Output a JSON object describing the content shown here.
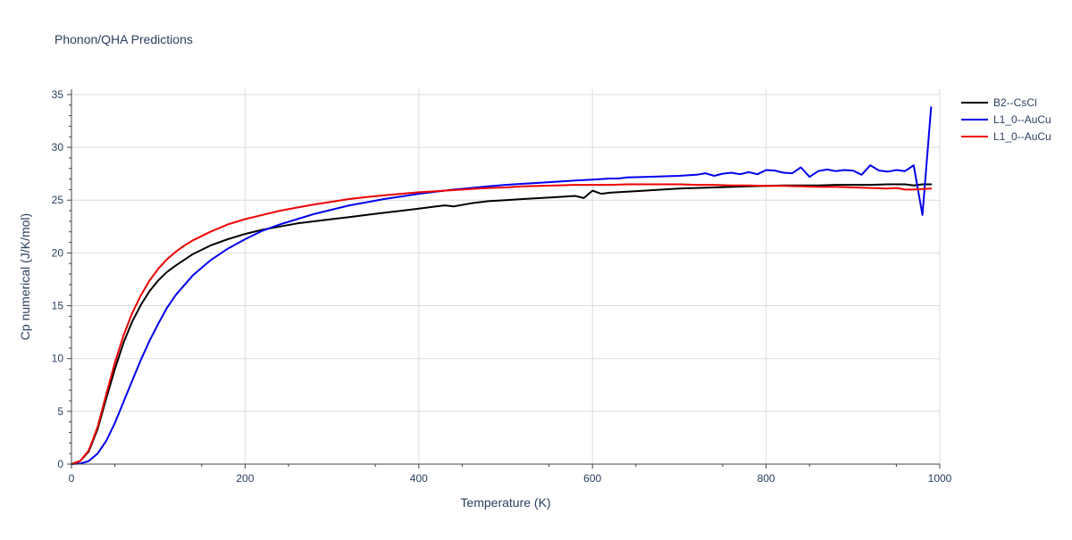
{
  "chart_data": {
    "type": "line",
    "title": "Phonon/QHA Predictions",
    "xlabel": "Temperature (K)",
    "ylabel": "Cp numerical (J/K/mol)",
    "xlim": [
      0,
      1000
    ],
    "ylim": [
      0,
      35.5
    ],
    "xticks": [
      0,
      200,
      400,
      600,
      800,
      1000
    ],
    "yticks": [
      0,
      5,
      10,
      15,
      20,
      25,
      30,
      35
    ],
    "grid": true,
    "legend_position": "right",
    "series": [
      {
        "name": "B2--CsCl",
        "color": "#000000",
        "x": [
          0,
          10,
          20,
          30,
          40,
          50,
          60,
          70,
          80,
          90,
          100,
          110,
          120,
          140,
          160,
          180,
          200,
          220,
          240,
          260,
          280,
          300,
          320,
          340,
          360,
          380,
          400,
          420,
          430,
          440,
          460,
          480,
          500,
          520,
          540,
          560,
          580,
          590,
          600,
          610,
          620,
          640,
          660,
          680,
          700,
          720,
          740,
          760,
          780,
          800,
          820,
          840,
          860,
          880,
          900,
          920,
          940,
          960,
          970,
          980,
          990
        ],
        "y": [
          0,
          0.3,
          1.2,
          3.3,
          6.2,
          9.0,
          11.5,
          13.5,
          15.1,
          16.4,
          17.4,
          18.2,
          18.8,
          19.9,
          20.7,
          21.3,
          21.8,
          22.2,
          22.5,
          22.8,
          23.0,
          23.2,
          23.4,
          23.6,
          23.8,
          24.0,
          24.2,
          24.4,
          24.5,
          24.4,
          24.7,
          24.9,
          25.0,
          25.1,
          25.2,
          25.3,
          25.4,
          25.2,
          25.9,
          25.6,
          25.7,
          25.8,
          25.9,
          26.0,
          26.1,
          26.15,
          26.2,
          26.25,
          26.3,
          26.35,
          26.4,
          26.4,
          26.4,
          26.45,
          26.45,
          26.45,
          26.5,
          26.5,
          26.4,
          26.5,
          26.5
        ]
      },
      {
        "name": "L1_0--AuCu",
        "color": "#0000ee",
        "x": [
          0,
          10,
          20,
          30,
          40,
          50,
          60,
          70,
          80,
          90,
          100,
          110,
          120,
          140,
          160,
          180,
          200,
          220,
          240,
          260,
          280,
          300,
          320,
          340,
          360,
          380,
          400,
          420,
          440,
          460,
          480,
          500,
          520,
          540,
          560,
          580,
          600,
          620,
          630,
          640,
          660,
          680,
          700,
          720,
          730,
          740,
          750,
          760,
          770,
          780,
          790,
          800,
          810,
          820,
          830,
          840,
          850,
          860,
          870,
          880,
          890,
          900,
          910,
          920,
          930,
          940,
          950,
          960,
          970,
          980,
          990
        ],
        "y": [
          0,
          0.05,
          0.3,
          1.0,
          2.2,
          3.9,
          5.9,
          7.9,
          9.9,
          11.7,
          13.3,
          14.8,
          16.0,
          17.9,
          19.3,
          20.4,
          21.3,
          22.1,
          22.7,
          23.2,
          23.7,
          24.1,
          24.5,
          24.8,
          25.1,
          25.35,
          25.6,
          25.8,
          26.0,
          26.15,
          26.3,
          26.45,
          26.55,
          26.65,
          26.75,
          26.85,
          26.95,
          27.05,
          27.05,
          27.15,
          27.2,
          27.25,
          27.3,
          27.4,
          27.55,
          27.3,
          27.5,
          27.6,
          27.45,
          27.65,
          27.45,
          27.85,
          27.8,
          27.6,
          27.55,
          28.1,
          27.2,
          27.75,
          27.9,
          27.75,
          27.85,
          27.8,
          27.4,
          28.3,
          27.8,
          27.7,
          27.85,
          27.75,
          28.3,
          23.6,
          33.8
        ]
      },
      {
        "name": "L1_0--AuCu",
        "color": "#ee0000",
        "x": [
          0,
          10,
          20,
          30,
          40,
          50,
          60,
          70,
          80,
          90,
          100,
          110,
          120,
          130,
          140,
          160,
          180,
          200,
          220,
          240,
          260,
          280,
          300,
          320,
          340,
          360,
          380,
          400,
          420,
          440,
          460,
          480,
          500,
          520,
          540,
          560,
          580,
          600,
          620,
          640,
          660,
          680,
          700,
          720,
          740,
          760,
          780,
          800,
          820,
          840,
          860,
          880,
          900,
          920,
          940,
          950,
          960,
          970,
          980,
          990
        ],
        "y": [
          0,
          0.3,
          1.3,
          3.5,
          6.6,
          9.6,
          12.2,
          14.3,
          16.0,
          17.4,
          18.5,
          19.4,
          20.1,
          20.7,
          21.2,
          22.0,
          22.7,
          23.2,
          23.6,
          24.0,
          24.3,
          24.6,
          24.85,
          25.1,
          25.3,
          25.45,
          25.6,
          25.75,
          25.85,
          25.95,
          26.05,
          26.15,
          26.2,
          26.3,
          26.35,
          26.4,
          26.45,
          26.45,
          26.45,
          26.5,
          26.5,
          26.5,
          26.5,
          26.45,
          26.45,
          26.4,
          26.4,
          26.35,
          26.35,
          26.3,
          26.25,
          26.25,
          26.2,
          26.15,
          26.1,
          26.15,
          26.0,
          26.0,
          26.05,
          26.1
        ]
      }
    ]
  }
}
